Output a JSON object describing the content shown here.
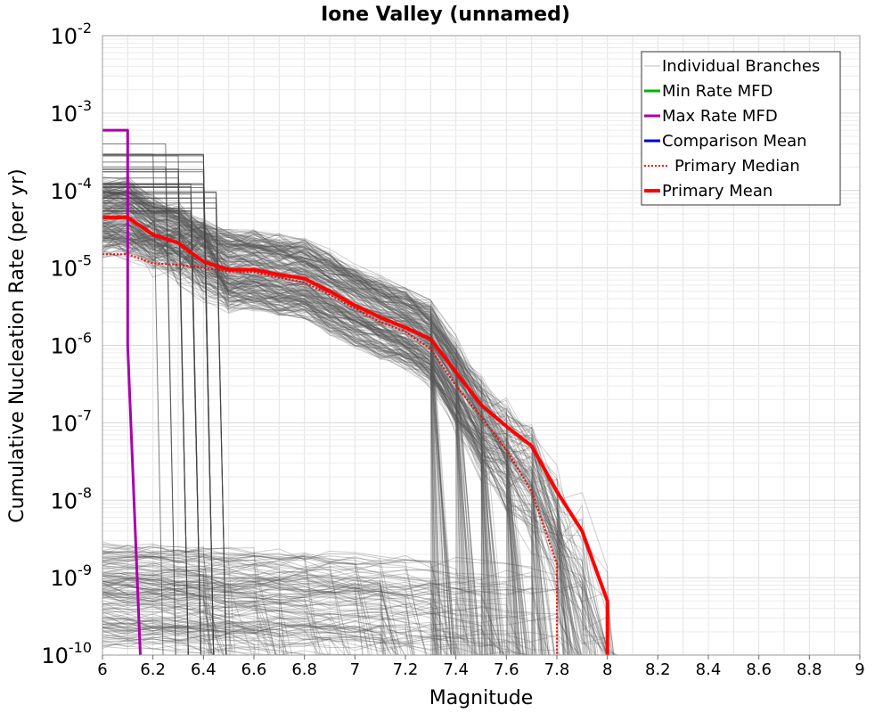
{
  "chart_data": {
    "type": "line",
    "title": "Ione Valley (unnamed)",
    "xlabel": "Magnitude",
    "ylabel": "Cumulative Nucleation Rate (per yr)",
    "xlim": [
      6,
      9
    ],
    "ylim_log10": [
      -10,
      -2
    ],
    "yscale": "log",
    "grid": true,
    "legend_position": "top-right",
    "x_ticks": [
      "6",
      "6.2",
      "6.4",
      "6.6",
      "6.8",
      "7",
      "7.2",
      "7.4",
      "7.6",
      "7.8",
      "8",
      "8.2",
      "8.4",
      "8.6",
      "8.8",
      "9"
    ],
    "y_ticks": [
      {
        "base": "10",
        "exp": "-2"
      },
      {
        "base": "10",
        "exp": "-3"
      },
      {
        "base": "10",
        "exp": "-4"
      },
      {
        "base": "10",
        "exp": "-5"
      },
      {
        "base": "10",
        "exp": "-6"
      },
      {
        "base": "10",
        "exp": "-7"
      },
      {
        "base": "10",
        "exp": "-8"
      },
      {
        "base": "10",
        "exp": "-9"
      },
      {
        "base": "10",
        "exp": "-10"
      }
    ],
    "legend": [
      {
        "label": "Individual Branches",
        "color": "#bbbbbb",
        "style": "thin"
      },
      {
        "label": "Min Rate MFD",
        "color": "#00b400",
        "style": "solid"
      },
      {
        "label": "Max Rate MFD",
        "color": "#aa00aa",
        "style": "solid"
      },
      {
        "label": "Comparison Mean",
        "color": "#0000cc",
        "style": "solid"
      },
      {
        "label": "Primary Median",
        "color": "#ff0000",
        "style": "dotted"
      },
      {
        "label": "Primary Mean",
        "color": "#ff0000",
        "style": "thick"
      }
    ],
    "series": [
      {
        "name": "Max Rate MFD",
        "color": "#aa00aa",
        "x": [
          6.0,
          6.1,
          6.1,
          6.15
        ],
        "y": [
          0.0006,
          0.0006,
          1e-06,
          1e-10
        ]
      },
      {
        "name": "Primary Median",
        "color": "#ff0000",
        "x": [
          6.0,
          6.1,
          6.2,
          6.3,
          6.4,
          6.5,
          6.6,
          6.7,
          6.8,
          6.9,
          7.0,
          7.1,
          7.2,
          7.3,
          7.4,
          7.5,
          7.6,
          7.7,
          7.8,
          7.8
        ],
        "y": [
          1.5e-05,
          1.5e-05,
          1.15e-05,
          1.1e-05,
          1e-05,
          9e-06,
          8.8e-06,
          7.5e-06,
          6.5e-06,
          4.5e-06,
          3e-06,
          2e-06,
          1.5e-06,
          9e-07,
          3e-07,
          1.2e-07,
          4.5e-08,
          1.3e-08,
          1.5e-09,
          1e-10
        ]
      },
      {
        "name": "Primary Mean",
        "color": "#ff0000",
        "x": [
          6.0,
          6.1,
          6.2,
          6.3,
          6.4,
          6.5,
          6.6,
          6.7,
          6.8,
          6.9,
          7.0,
          7.1,
          7.2,
          7.3,
          7.4,
          7.5,
          7.6,
          7.7,
          7.8,
          7.9,
          8.0,
          8.0
        ],
        "y": [
          4.5e-05,
          4.5e-05,
          2.7e-05,
          2.1e-05,
          1.2e-05,
          9.5e-06,
          9.5e-06,
          8.2e-06,
          7.3e-06,
          5e-06,
          3.3e-06,
          2.3e-06,
          1.7e-06,
          1.2e-06,
          4.5e-07,
          1.7e-07,
          9e-08,
          5e-08,
          1.3e-08,
          4e-09,
          5e-10,
          1e-10
        ]
      }
    ]
  }
}
